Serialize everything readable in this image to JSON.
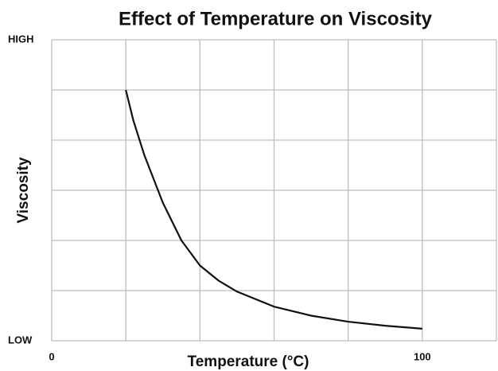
{
  "chart_data": {
    "type": "line",
    "title": "Effect of Temperature on Viscosity",
    "x_label": "Temperature (°C)",
    "y_label": "Viscosity",
    "x": [
      20,
      22,
      25,
      30,
      35,
      40,
      45,
      50,
      60,
      70,
      80,
      90,
      100
    ],
    "series": [
      {
        "name": "Viscosity",
        "color": "#111111",
        "values": [
          5,
          4.4,
          3.7,
          2.75,
          2.0,
          1.5,
          1.2,
          0.98,
          0.68,
          0.5,
          0.38,
          0.3,
          0.24
        ]
      }
    ],
    "xlim": [
      0,
      120
    ],
    "xticks": [
      0,
      100
    ],
    "x_grid_lines": [
      20,
      40,
      60,
      80,
      120
    ],
    "ylim": [
      0,
      6
    ],
    "yticks": [
      {
        "value": 0,
        "label": "LOW"
      },
      {
        "value": 6,
        "label": "HIGH"
      }
    ],
    "y_grid_lines": [
      1,
      2,
      3,
      4,
      5
    ],
    "grid": true
  }
}
